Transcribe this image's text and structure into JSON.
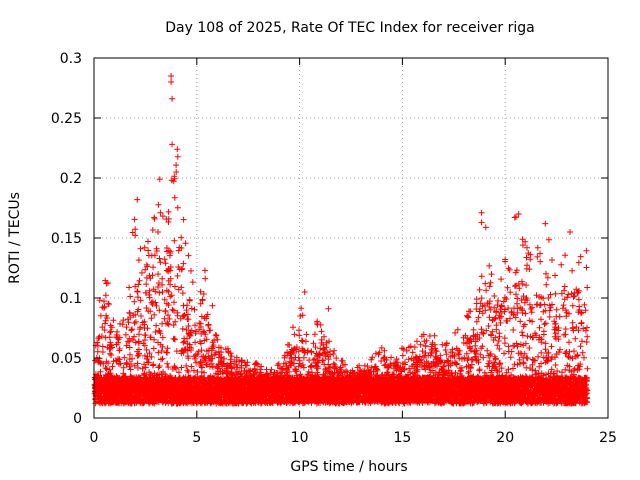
{
  "chart_data": {
    "type": "scatter",
    "title": "Day 108 of 2025, Rate Of TEC Index for receiver riga",
    "xlabel": "GPS time / hours",
    "ylabel": "ROTI / TECUs",
    "xlim": [
      0,
      25
    ],
    "ylim": [
      0,
      0.3
    ],
    "x_ticks": [
      0,
      5,
      10,
      15,
      20,
      25
    ],
    "x_tick_labels": [
      "0",
      "5",
      "10",
      "15",
      "20",
      "25"
    ],
    "y_ticks": [
      0,
      0.05,
      0.1,
      0.15,
      0.2,
      0.25,
      0.3
    ],
    "y_tick_labels": [
      "0",
      "0.05",
      "0.1",
      "0.15",
      "0.2",
      "0.25",
      "0.3"
    ],
    "grid": true,
    "marker": "plus",
    "color": "#ff0000",
    "envelope": {
      "x": [
        0,
        0.5,
        1,
        1.5,
        2,
        2.5,
        3,
        3.5,
        4,
        4.5,
        5,
        5.5,
        6,
        6.5,
        7,
        7.5,
        8,
        8.5,
        9,
        9.5,
        10,
        10.5,
        11,
        11.5,
        12,
        12.5,
        13,
        13.5,
        14,
        14.5,
        15,
        15.5,
        16,
        16.5,
        17,
        17.5,
        18,
        18.5,
        19,
        19.5,
        20,
        20.5,
        21,
        21.5,
        22,
        22.5,
        23,
        23.5,
        24
      ],
      "y": [
        0.07,
        0.12,
        0.1,
        0.09,
        0.18,
        0.14,
        0.2,
        0.17,
        0.23,
        0.16,
        0.1,
        0.12,
        0.07,
        0.06,
        0.05,
        0.05,
        0.045,
        0.04,
        0.05,
        0.07,
        0.1,
        0.06,
        0.09,
        0.06,
        0.05,
        0.04,
        0.05,
        0.05,
        0.06,
        0.05,
        0.06,
        0.06,
        0.07,
        0.07,
        0.06,
        0.07,
        0.09,
        0.09,
        0.17,
        0.1,
        0.14,
        0.17,
        0.15,
        0.14,
        0.16,
        0.12,
        0.14,
        0.15,
        0.14
      ]
    },
    "peaks": [
      {
        "x": 3.75,
        "y": 0.285
      },
      {
        "x": 3.75,
        "y": 0.28
      },
      {
        "x": 3.8,
        "y": 0.266
      },
      {
        "x": 3.8,
        "y": 0.228
      },
      {
        "x": 4.05,
        "y": 0.224
      },
      {
        "x": 3.2,
        "y": 0.199
      },
      {
        "x": 4.0,
        "y": 0.205
      },
      {
        "x": 2.1,
        "y": 0.182
      },
      {
        "x": 18.85,
        "y": 0.171
      },
      {
        "x": 18.85,
        "y": 0.163
      },
      {
        "x": 20.65,
        "y": 0.17
      },
      {
        "x": 21.95,
        "y": 0.162
      },
      {
        "x": 23.15,
        "y": 0.155
      },
      {
        "x": 10.25,
        "y": 0.105
      },
      {
        "x": 11.4,
        "y": 0.091
      },
      {
        "x": 5.4,
        "y": 0.123
      }
    ],
    "point_count": 9000
  }
}
